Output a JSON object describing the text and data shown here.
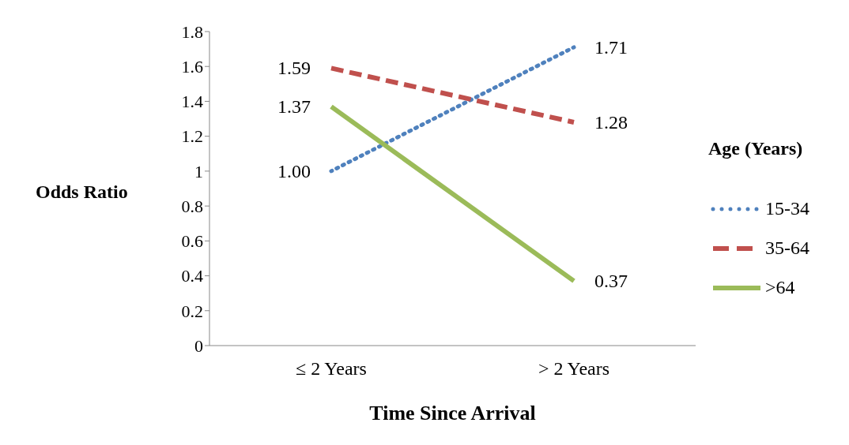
{
  "chart_data": {
    "type": "line",
    "xlabel": "Time Since Arrival",
    "ylabel": "Odds Ratio",
    "legend_title": "Age (Years)",
    "categories": [
      "≤ 2 Years",
      "> 2 Years"
    ],
    "series": [
      {
        "name": "15-34",
        "color": "#4f81bd",
        "line_style": "dotted",
        "values": [
          1.0,
          1.71
        ],
        "value_labels": [
          "1.00",
          "1.71"
        ]
      },
      {
        "name": "35-64",
        "color": "#c0504d",
        "line_style": "dashed",
        "values": [
          1.59,
          1.28
        ],
        "value_labels": [
          "1.59",
          "1.28"
        ]
      },
      {
        "name": ">64",
        "color": "#9bbb59",
        "line_style": "solid",
        "values": [
          1.37,
          0.37
        ],
        "value_labels": [
          "1.37",
          "0.37"
        ]
      }
    ],
    "ylim": [
      0,
      1.8
    ],
    "yticks": [
      0,
      0.2,
      0.4,
      0.6,
      0.8,
      1,
      1.2,
      1.4,
      1.6,
      1.8
    ],
    "grid": false,
    "legend": "right",
    "marker": "none"
  }
}
